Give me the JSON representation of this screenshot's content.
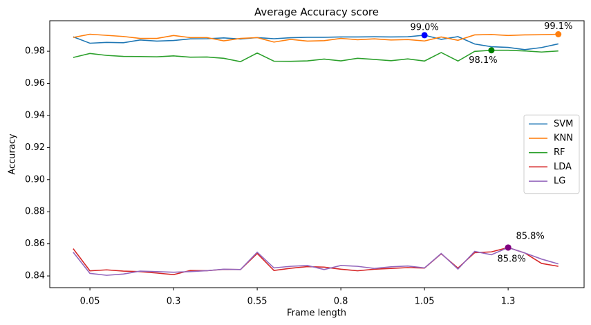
{
  "chart_data": {
    "type": "line",
    "title": "Average Accuracy score",
    "x_label": "Frame length",
    "y_label": "Accuracy",
    "x": [
      0,
      0.05,
      0.1,
      0.15,
      0.2,
      0.25,
      0.3,
      0.35,
      0.4,
      0.45,
      0.5,
      0.55,
      0.6,
      0.65,
      0.7,
      0.75,
      0.8,
      0.85,
      0.9,
      0.95,
      1.0,
      1.05,
      1.1,
      1.15,
      1.2,
      1.25,
      1.3,
      1.35,
      1.4,
      1.45
    ],
    "series": [
      {
        "name": "SVM",
        "color": "#1f77b4",
        "values": [
          0.989,
          0.985,
          0.9855,
          0.9853,
          0.987,
          0.9863,
          0.9867,
          0.9877,
          0.9878,
          0.9883,
          0.9876,
          0.9885,
          0.9878,
          0.9884,
          0.9887,
          0.9887,
          0.9889,
          0.9889,
          0.989,
          0.9889,
          0.989,
          0.99,
          0.9874,
          0.9891,
          0.9845,
          0.9828,
          0.9824,
          0.981,
          0.9823,
          0.9846
        ]
      },
      {
        "name": "KNN",
        "color": "#ff7f0e",
        "values": [
          0.9886,
          0.9906,
          0.9899,
          0.9892,
          0.988,
          0.988,
          0.9898,
          0.9885,
          0.9885,
          0.9865,
          0.988,
          0.9885,
          0.9857,
          0.9874,
          0.9863,
          0.9866,
          0.988,
          0.9872,
          0.9877,
          0.987,
          0.9873,
          0.9864,
          0.9889,
          0.9868,
          0.9902,
          0.9904,
          0.9898,
          0.9902,
          0.9903,
          0.9906
        ]
      },
      {
        "name": "RF",
        "color": "#2ca02c",
        "values": [
          0.9761,
          0.9786,
          0.9774,
          0.9768,
          0.9767,
          0.9765,
          0.9771,
          0.9763,
          0.9764,
          0.9756,
          0.9735,
          0.9789,
          0.9738,
          0.9737,
          0.974,
          0.9751,
          0.974,
          0.9756,
          0.9749,
          0.9741,
          0.9752,
          0.9739,
          0.9792,
          0.9739,
          0.9799,
          0.9806,
          0.9806,
          0.9802,
          0.9795,
          0.9802
        ]
      },
      {
        "name": "LDA",
        "color": "#d62728",
        "values": [
          0.857,
          0.8432,
          0.8438,
          0.843,
          0.8427,
          0.8418,
          0.8408,
          0.8434,
          0.8433,
          0.8441,
          0.844,
          0.854,
          0.8434,
          0.8448,
          0.8458,
          0.8455,
          0.8442,
          0.8432,
          0.8442,
          0.8447,
          0.8452,
          0.8449,
          0.8538,
          0.8449,
          0.8545,
          0.855,
          0.8577,
          0.8543,
          0.8478,
          0.846
        ]
      },
      {
        "name": "LG",
        "color": "#9467bd",
        "values": [
          0.8548,
          0.8416,
          0.8404,
          0.8412,
          0.843,
          0.8427,
          0.8423,
          0.8427,
          0.8433,
          0.8442,
          0.844,
          0.8548,
          0.845,
          0.846,
          0.8465,
          0.844,
          0.8465,
          0.846,
          0.8447,
          0.8457,
          0.8462,
          0.845,
          0.854,
          0.8443,
          0.8553,
          0.8532,
          0.8577,
          0.8543,
          0.8505,
          0.8475
        ]
      }
    ],
    "annotations": [
      {
        "x": 1.05,
        "y": 0.99,
        "label": "99.0%",
        "color": "#0000ff"
      },
      {
        "x": 1.45,
        "y": 0.9906,
        "label": "99.1%",
        "color": "#ff7f0e"
      },
      {
        "x": 1.25,
        "y": 0.9806,
        "label": "98.1%",
        "color": "#008000"
      },
      {
        "x": 1.3,
        "y": 0.8577,
        "label": "85.8%",
        "color": "#800080"
      },
      {
        "x": 1.3,
        "y": 0.8577,
        "label": "85.8%",
        "color": "#800080"
      }
    ],
    "xlim": [
      -0.07,
      1.527
    ],
    "ylim": [
      0.8327,
      0.999
    ],
    "xticks": [
      0.05,
      0.3,
      0.55,
      0.8,
      1.05,
      1.3
    ],
    "yticks": [
      0.84,
      0.86,
      0.88,
      {
        "value": 0.9,
        "label": "0.90"
      },
      0.92,
      0.94,
      0.96,
      0.98
    ],
    "grid": false,
    "legend": "center right"
  }
}
